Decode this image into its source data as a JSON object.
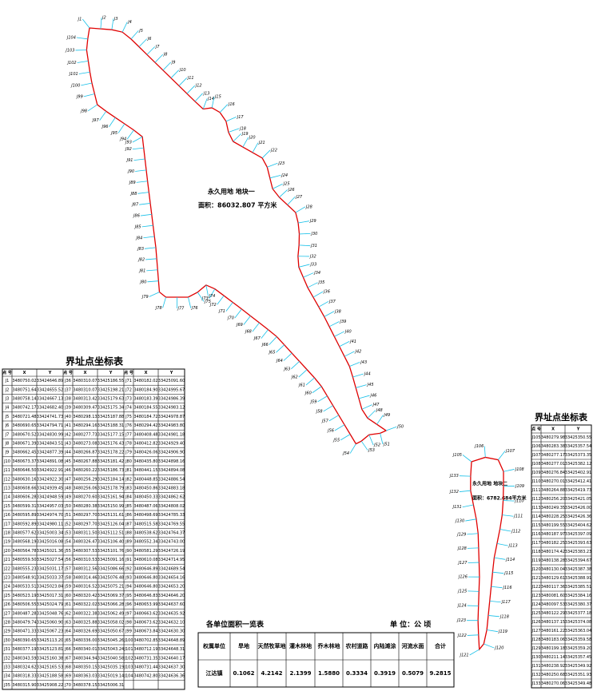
{
  "map": {
    "parcels": [
      {
        "name": "永久用地 地块一",
        "area": "面积：86032.807 平方米"
      },
      {
        "name": "永久用地 地块二",
        "area": "面积：6782.684平方米"
      }
    ]
  },
  "table1": {
    "title": "界址点坐标表",
    "headers": [
      "点 号",
      "X",
      "Y",
      "点 号",
      "X",
      "Y",
      "点 号",
      "X",
      "Y"
    ],
    "rows": [
      [
        "J1",
        "3480750.02",
        "33424646.89",
        "J36",
        "3480310.07",
        "33425186.55",
        "J71",
        "3480182.02",
        "33425091.60"
      ],
      [
        "J2",
        "3480751.64",
        "33424655.52",
        "J37",
        "3480310.07",
        "33425198.21",
        "J72",
        "3480184.90",
        "33424995.67"
      ],
      [
        "J3",
        "3480758.14",
        "33424667.13",
        "J38",
        "3480313.42",
        "33425179.63",
        "J73",
        "3480183.39",
        "33424986.39"
      ],
      [
        "J4",
        "3480742.17",
        "33424682.40",
        "J39",
        "3480309.47",
        "33425175.34",
        "J74",
        "3480184.55",
        "33424983.12"
      ],
      [
        "J5",
        "3480721.48",
        "33424741.73",
        "J40",
        "3480298.13",
        "33425187.88",
        "J75",
        "3480184.72",
        "33424978.87"
      ],
      [
        "J6",
        "3480690.65",
        "33424794.71",
        "J41",
        "3480294.16",
        "33425188.31",
        "J76",
        "3480294.42",
        "33424983.80"
      ],
      [
        "J7",
        "3480670.52",
        "33424830.99",
        "J42",
        "3480277.73",
        "33425177.15",
        "J77",
        "3480408.48",
        "33424981.18"
      ],
      [
        "J8",
        "3480671.39",
        "33424843.51",
        "J43",
        "3480273.08",
        "33425176.43",
        "J78",
        "3480412.82",
        "33424929.40"
      ],
      [
        "J9",
        "3480662.45",
        "33424877.39",
        "J44",
        "3480266.87",
        "33425178.22",
        "J79",
        "3480426.06",
        "33424906.90"
      ],
      [
        "J10",
        "3480673.37",
        "33424891.08",
        "J45",
        "3480267.88",
        "33425181.42",
        "J80",
        "3480435.80",
        "33424898.16"
      ],
      [
        "J11",
        "3480646.50",
        "33424922.91",
        "J46",
        "3480260.22",
        "33425186.73",
        "J81",
        "3480441.15",
        "33424894.08"
      ],
      [
        "J12",
        "3480630.16",
        "33424922.30",
        "J47",
        "3480256.29",
        "33425184.14",
        "J82",
        "3480448.85",
        "33424886.54"
      ],
      [
        "J13",
        "3480608.66",
        "33424939.45",
        "J48",
        "3480256.06",
        "33425178.79",
        "J83",
        "3480450.86",
        "33424883.18"
      ],
      [
        "J14",
        "3480606.28",
        "33424948.59",
        "J49",
        "3480270.60",
        "33425161.94",
        "J84",
        "3480450.33",
        "33424862.62"
      ],
      [
        "J15",
        "3480599.31",
        "33424957.03",
        "J50",
        "3480280.38",
        "33425150.99",
        "J85",
        "3480487.06",
        "33424808.02"
      ],
      [
        "J16",
        "3480595.89",
        "33424974.70",
        "J51",
        "3480297.70",
        "33425131.61",
        "J86",
        "3480498.69",
        "33424785.33"
      ],
      [
        "J17",
        "3480592.89",
        "33424980.11",
        "J52",
        "3480297.70",
        "33425126.04",
        "J87",
        "3480515.58",
        "33424769.55"
      ],
      [
        "J18",
        "3480577.62",
        "33425003.34",
        "J53",
        "3480311.50",
        "33425112.51",
        "J88",
        "3480538.62",
        "33424764.37"
      ],
      [
        "J19",
        "3480568.19",
        "33425016.08",
        "J54",
        "3480326.47",
        "33425106.40",
        "J89",
        "3480552.34",
        "33424743.00"
      ],
      [
        "J20",
        "3480564.78",
        "33425021.36",
        "J55",
        "3480307.53",
        "33425101.76",
        "J90",
        "3480581.29",
        "33424726.19"
      ],
      [
        "J21",
        "3480559.50",
        "33425027.54",
        "J56",
        "3480310.53",
        "33425091.16",
        "J91",
        "3480610.08",
        "33424714.95"
      ],
      [
        "J22",
        "3480555.23",
        "33425031.17",
        "J57",
        "3480312.56",
        "33425086.66",
        "J92",
        "3480646.89",
        "33424689.54"
      ],
      [
        "J23",
        "3480548.91",
        "33425033.37",
        "J58",
        "3480314.46",
        "33425076.48",
        "J93",
        "3480646.80",
        "33424654.16"
      ],
      [
        "J24",
        "3480533.51",
        "33425023.84",
        "J59",
        "3480316.52",
        "33425075.21",
        "J94",
        "3480646.80",
        "33424653.20"
      ],
      [
        "J25",
        "3480523.19",
        "33425017.31",
        "J60",
        "3480320.42",
        "33425069.37",
        "J95",
        "3480646.83",
        "33424646.20"
      ],
      [
        "J26",
        "3480506.55",
        "33425024.79",
        "J61",
        "3480322.02",
        "33425066.28",
        "J96",
        "3480653.99",
        "33424637.60"
      ],
      [
        "J27",
        "3480487.28",
        "33425048.76",
        "J62",
        "3480322.38",
        "33425062.49",
        "J97",
        "3480663.62",
        "33424635.92"
      ],
      [
        "J28",
        "3480479.74",
        "33425060.90",
        "J63",
        "3480325.88",
        "33425058.02",
        "J98",
        "3480673.62",
        "33424632.10"
      ],
      [
        "J29",
        "3480471.33",
        "33425067.23",
        "J64",
        "3480326.69",
        "33425050.67",
        "J99",
        "3480673.84",
        "33424630.30"
      ],
      [
        "J30",
        "3480390.65",
        "33425113.20",
        "J65",
        "3480336.00",
        "33425045.26",
        "J100",
        "3480702.85",
        "33424648.89"
      ],
      [
        "J31",
        "3480377.19",
        "33425123.81",
        "J66",
        "3480340.01",
        "33425043.24",
        "J101",
        "3480712.19",
        "33424648.31"
      ],
      [
        "J32",
        "3480343.59",
        "33425160.38",
        "J67",
        "3480344.94",
        "33425040.58",
        "J102",
        "3480731.35",
        "33424640.17"
      ],
      [
        "J33",
        "3480324.62",
        "33425165.53",
        "J68",
        "3480350.15",
        "33425035.19",
        "J103",
        "3480731.44",
        "33424637.30"
      ],
      [
        "J34",
        "3480318.33",
        "33425188.58",
        "J69",
        "3480363.03",
        "33425019.14",
        "J104",
        "3480742.80",
        "33424636.36"
      ],
      [
        "J35",
        "3480315.90",
        "33425908.22",
        "J70",
        "3480378.15",
        "33425006.31"
      ]
    ]
  },
  "table2": {
    "title": "界址点坐标表",
    "headers": [
      "点 号",
      "X",
      "Y"
    ],
    "rows": [
      [
        "J105",
        "3480279.98",
        "33425350.55"
      ],
      [
        "J106",
        "3480283.38",
        "33425357.54"
      ],
      [
        "J107",
        "3480277.17",
        "33425373.35"
      ],
      [
        "J108",
        "3480277.01",
        "33425382.12"
      ],
      [
        "J109",
        "3480276.84",
        "33425402.91"
      ],
      [
        "J110",
        "3480270.01",
        "33425412.41"
      ],
      [
        "J111",
        "3480264.88",
        "33425419.73"
      ],
      [
        "J112",
        "3480256.20",
        "33425421.05"
      ],
      [
        "J113",
        "3480249.35",
        "33425426.00"
      ],
      [
        "J114",
        "3480228.25",
        "33425426.36"
      ],
      [
        "J115",
        "3480199.55",
        "33425404.62"
      ],
      [
        "J116",
        "3480187.97",
        "33425397.09"
      ],
      [
        "J117",
        "3480182.25",
        "33425393.63"
      ],
      [
        "J118",
        "3480174.42",
        "33425383.23"
      ],
      [
        "J119",
        "3480138.28",
        "33425394.67"
      ],
      [
        "J120",
        "3480130.04",
        "33425387.38"
      ],
      [
        "J121",
        "3480129.61",
        "33425388.91"
      ],
      [
        "J122",
        "3480117.36",
        "33425385.51"
      ],
      [
        "J123",
        "3480081.60",
        "33425384.16"
      ],
      [
        "J124",
        "3480097.53",
        "33425380.37"
      ],
      [
        "J125",
        "3480122.29",
        "33425377.18"
      ],
      [
        "J126",
        "3480137.15",
        "33425374.08"
      ],
      [
        "J127",
        "3480161.22",
        "33425363.04"
      ],
      [
        "J128",
        "3480183.06",
        "33425359.58"
      ],
      [
        "J129",
        "3480199.18",
        "33425359.20"
      ],
      [
        "J130",
        "3480211.14",
        "33425357.45"
      ],
      [
        "J131",
        "3480238.92",
        "33425349.92"
      ],
      [
        "J132",
        "3480250.68",
        "33425351.93"
      ],
      [
        "J133",
        "3480270.06",
        "33425349.48"
      ]
    ]
  },
  "summary": {
    "title": "各单位面积一览表",
    "unit": "单 位：公 顷",
    "headers": [
      "权属单位",
      "旱地",
      "天然牧草地",
      "灌木林地",
      "乔木林地",
      "农村道路",
      "内陆滩涂",
      "河流水面",
      "合计"
    ],
    "rows": [
      [
        "江达镇",
        "0.1062",
        "4.2142",
        "2.1399",
        "1.5880",
        "0.3334",
        "0.3919",
        "0.5079",
        "9.2815"
      ]
    ]
  }
}
